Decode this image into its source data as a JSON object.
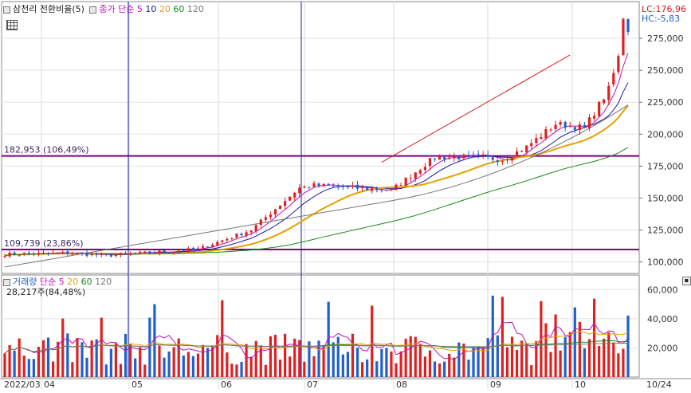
{
  "price_header": {
    "title": "삼천리 전환비율(5)",
    "ma_label": "종가 단순 5",
    "ma_periods": [
      "10",
      "20",
      "60",
      "120"
    ],
    "lc_label": "LC:176,96",
    "hc_label": "HC:-5,83"
  },
  "volume_header": {
    "title": "거래량",
    "ma_label": "단순 5",
    "ma_periods": [
      "20",
      "60",
      "120"
    ],
    "value_label": "28,217주(84,48%)"
  },
  "colors": {
    "up": "#e02020",
    "down": "#1f5fd0",
    "ma5": "#c010c0",
    "ma10": "#1a1aa0",
    "ma20": "#e8a000",
    "ma60": "#1a8a1a",
    "ma120": "#777777",
    "level_line": "#800080",
    "trend_line": "#d02020",
    "vline": "#1a1ab0"
  },
  "chart_data": [
    {
      "type": "candlestick",
      "title": "삼천리 전환비율(5)",
      "y_ticks": [
        "275,000",
        "250,000",
        "225,000",
        "200,000",
        "175,000",
        "150,000",
        "125,000",
        "100,000"
      ],
      "ylim": [
        91000,
        300000
      ],
      "x_labels": [
        "2022/03",
        "04",
        "05",
        "06",
        "07",
        "08",
        "09",
        "10",
        "10/24"
      ],
      "levels": [
        {
          "label": "182,953 (106,49%)",
          "value": 182953
        },
        {
          "label": "109,739 (23,86%)",
          "value": 109739
        }
      ],
      "anchors": [
        {
          "month": "03 start",
          "close": 106000
        },
        {
          "month": "04 start",
          "close": 107000
        },
        {
          "month": "04 mid",
          "close": 105000
        },
        {
          "month": "05 start",
          "close": 110000
        },
        {
          "month": "05 mid",
          "close": 125000
        },
        {
          "month": "05 end",
          "close": 158000
        },
        {
          "month": "06 start",
          "close": 160000
        },
        {
          "month": "06 end",
          "close": 156000
        },
        {
          "month": "07 start",
          "close": 182000
        },
        {
          "month": "07 end",
          "close": 182000
        },
        {
          "month": "08 start",
          "close": 180000
        },
        {
          "month": "08 mid",
          "close": 190000
        },
        {
          "month": "08 end",
          "close": 208000
        },
        {
          "month": "09 start",
          "close": 205000
        },
        {
          "month": "09 end",
          "close": 235000
        },
        {
          "month": "10 start",
          "close": 260000
        },
        {
          "month": "10 mid",
          "close": 292000
        },
        {
          "month": "10/24",
          "close": 282000
        }
      ],
      "moving_averages": [
        "5",
        "10",
        "20",
        "60",
        "120"
      ]
    },
    {
      "type": "bar",
      "title": "거래량",
      "y_ticks": [
        "60,000",
        "40,000",
        "20,000"
      ],
      "ylim": [
        0,
        70000
      ],
      "current_volume": "28,217주",
      "moving_averages": [
        "5",
        "20",
        "60",
        "120"
      ]
    }
  ]
}
